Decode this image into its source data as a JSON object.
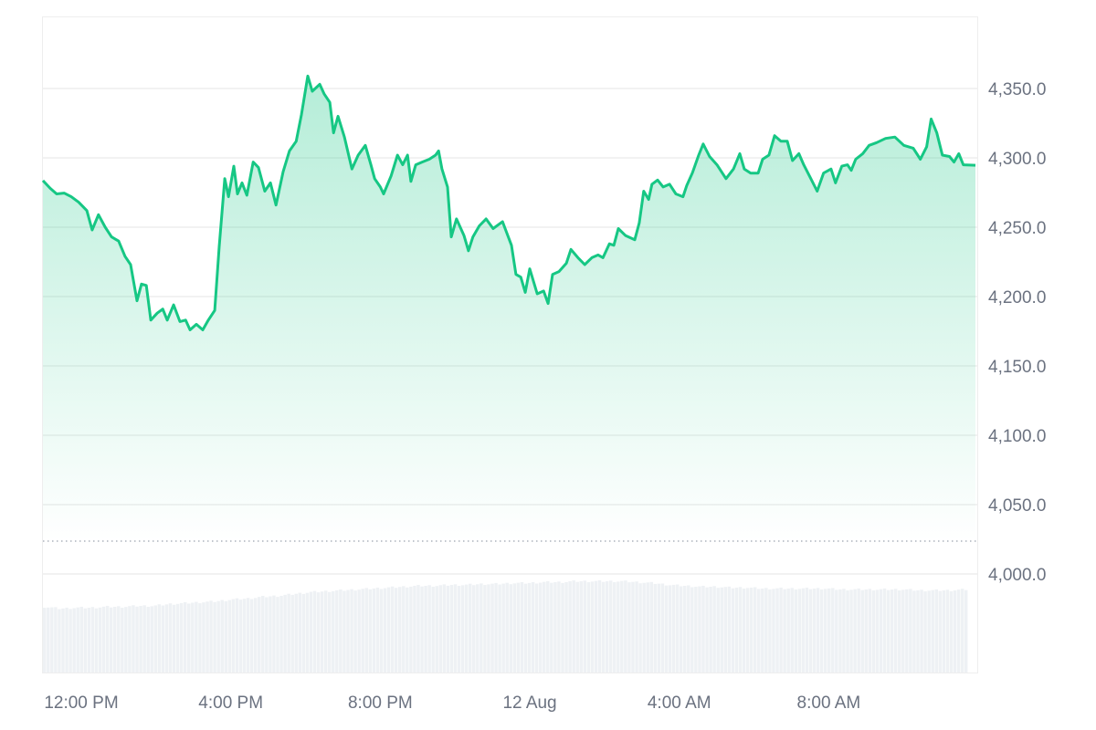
{
  "chart_data": {
    "type": "area",
    "title": "",
    "xlabel": "",
    "ylabel": "",
    "ylim": [
      3929,
      4402
    ],
    "grid": true,
    "legend": "none",
    "colors": {
      "line": "#16c784",
      "fill": "#16c784",
      "volume": "#eef1f4",
      "grid": "#eeeeee",
      "text": "#6b7280",
      "reference": "#9ca3af"
    },
    "x_range_hours": [
      -0.05,
      23.9
    ],
    "x_ticks": [
      {
        "label": "12:00 PM",
        "hour": 0
      },
      {
        "label": "4:00 PM",
        "hour": 4
      },
      {
        "label": "8:00 PM",
        "hour": 8
      },
      {
        "label": "12 Aug",
        "hour": 12
      },
      {
        "label": "4:00 AM",
        "hour": 16
      },
      {
        "label": "8:00 AM",
        "hour": 20
      }
    ],
    "y_ticks": [
      {
        "label": "4,350.0",
        "value": 4350
      },
      {
        "label": "4,300.0",
        "value": 4300
      },
      {
        "label": "4,250.0",
        "value": 4250
      },
      {
        "label": "4,200.0",
        "value": 4200
      },
      {
        "label": "4,150.0",
        "value": 4150
      },
      {
        "label": "4,100.0",
        "value": 4100
      },
      {
        "label": "4,050.0",
        "value": 4050
      },
      {
        "label": "4,000.0",
        "value": 4000
      }
    ],
    "reference_line": 4023.7,
    "series": [
      {
        "points": [
          [
            -1.03,
            4283.6
          ],
          [
            -0.83,
            4278
          ],
          [
            -0.66,
            4274
          ],
          [
            -0.46,
            4274.6
          ],
          [
            -0.27,
            4272
          ],
          [
            -0.07,
            4268
          ],
          [
            0.15,
            4262
          ],
          [
            0.29,
            4248
          ],
          [
            0.46,
            4259
          ],
          [
            0.64,
            4250
          ],
          [
            0.81,
            4243
          ],
          [
            1.0,
            4240
          ],
          [
            1.17,
            4229
          ],
          [
            1.32,
            4223
          ],
          [
            1.49,
            4197
          ],
          [
            1.61,
            4209
          ],
          [
            1.74,
            4208
          ],
          [
            1.86,
            4183
          ],
          [
            2.03,
            4188
          ],
          [
            2.18,
            4191
          ],
          [
            2.3,
            4183
          ],
          [
            2.47,
            4194
          ],
          [
            2.64,
            4182
          ],
          [
            2.79,
            4183
          ],
          [
            2.91,
            4176
          ],
          [
            3.08,
            4180
          ],
          [
            3.25,
            4176
          ],
          [
            3.4,
            4183
          ],
          [
            3.57,
            4190
          ],
          [
            3.69,
            4236
          ],
          [
            3.84,
            4285
          ],
          [
            3.94,
            4272
          ],
          [
            4.08,
            4294
          ],
          [
            4.18,
            4274
          ],
          [
            4.3,
            4282
          ],
          [
            4.43,
            4273
          ],
          [
            4.6,
            4297
          ],
          [
            4.74,
            4293
          ],
          [
            4.91,
            4276
          ],
          [
            5.06,
            4282
          ],
          [
            5.21,
            4266
          ],
          [
            5.4,
            4290
          ],
          [
            5.57,
            4305
          ],
          [
            5.75,
            4312
          ],
          [
            5.89,
            4331
          ],
          [
            6.06,
            4359
          ],
          [
            6.18,
            4348
          ],
          [
            6.38,
            4353
          ],
          [
            6.5,
            4346
          ],
          [
            6.65,
            4340
          ],
          [
            6.75,
            4318
          ],
          [
            6.87,
            4330
          ],
          [
            7.04,
            4315
          ],
          [
            7.24,
            4292
          ],
          [
            7.41,
            4302
          ],
          [
            7.6,
            4309
          ],
          [
            7.75,
            4295
          ],
          [
            7.85,
            4285
          ],
          [
            8.0,
            4279
          ],
          [
            8.09,
            4274
          ],
          [
            8.29,
            4287
          ],
          [
            8.46,
            4302
          ],
          [
            8.6,
            4295
          ],
          [
            8.73,
            4302
          ],
          [
            8.82,
            4283
          ],
          [
            8.95,
            4295
          ],
          [
            9.12,
            4297
          ],
          [
            9.31,
            4299
          ],
          [
            9.48,
            4302
          ],
          [
            9.56,
            4305
          ],
          [
            9.65,
            4292
          ],
          [
            9.8,
            4279
          ],
          [
            9.9,
            4243
          ],
          [
            10.04,
            4256
          ],
          [
            10.24,
            4244
          ],
          [
            10.36,
            4233
          ],
          [
            10.48,
            4243
          ],
          [
            10.65,
            4251
          ],
          [
            10.83,
            4256
          ],
          [
            11.02,
            4249
          ],
          [
            11.27,
            4254
          ],
          [
            11.51,
            4237
          ],
          [
            11.63,
            4216
          ],
          [
            11.76,
            4214
          ],
          [
            11.88,
            4203
          ],
          [
            12.0,
            4220
          ],
          [
            12.2,
            4202
          ],
          [
            12.37,
            4204
          ],
          [
            12.49,
            4195
          ],
          [
            12.61,
            4216
          ],
          [
            12.78,
            4218
          ],
          [
            12.98,
            4224
          ],
          [
            13.1,
            4234
          ],
          [
            13.29,
            4228
          ],
          [
            13.47,
            4223
          ],
          [
            13.66,
            4228
          ],
          [
            13.83,
            4230
          ],
          [
            13.96,
            4228
          ],
          [
            14.13,
            4238
          ],
          [
            14.25,
            4237
          ],
          [
            14.37,
            4249
          ],
          [
            14.56,
            4244
          ],
          [
            14.81,
            4241
          ],
          [
            14.93,
            4253
          ],
          [
            15.05,
            4276
          ],
          [
            15.18,
            4270
          ],
          [
            15.27,
            4281
          ],
          [
            15.42,
            4284
          ],
          [
            15.57,
            4279
          ],
          [
            15.74,
            4281
          ],
          [
            15.91,
            4274
          ],
          [
            16.1,
            4272
          ],
          [
            16.2,
            4280
          ],
          [
            16.35,
            4289
          ],
          [
            16.52,
            4302
          ],
          [
            16.64,
            4310
          ],
          [
            16.81,
            4301
          ],
          [
            17.01,
            4295
          ],
          [
            17.25,
            4285
          ],
          [
            17.45,
            4292
          ],
          [
            17.62,
            4303
          ],
          [
            17.74,
            4292
          ],
          [
            17.91,
            4289
          ],
          [
            18.11,
            4289
          ],
          [
            18.23,
            4299
          ],
          [
            18.4,
            4302
          ],
          [
            18.55,
            4316
          ],
          [
            18.72,
            4312
          ],
          [
            18.89,
            4312
          ],
          [
            19.03,
            4298
          ],
          [
            19.2,
            4303
          ],
          [
            19.33,
            4295
          ],
          [
            19.52,
            4285
          ],
          [
            19.69,
            4276
          ],
          [
            19.86,
            4289
          ],
          [
            20.06,
            4292
          ],
          [
            20.18,
            4282
          ],
          [
            20.35,
            4294
          ],
          [
            20.5,
            4295
          ],
          [
            20.6,
            4291
          ],
          [
            20.72,
            4299
          ],
          [
            20.91,
            4303
          ],
          [
            21.08,
            4309
          ],
          [
            21.28,
            4311
          ],
          [
            21.52,
            4314
          ],
          [
            21.77,
            4315
          ],
          [
            22.01,
            4309
          ],
          [
            22.26,
            4307
          ],
          [
            22.45,
            4299
          ],
          [
            22.62,
            4308
          ],
          [
            22.74,
            4328
          ],
          [
            22.89,
            4318
          ],
          [
            23.04,
            4302
          ],
          [
            23.23,
            4301
          ],
          [
            23.35,
            4297
          ],
          [
            23.48,
            4303
          ],
          [
            23.6,
            4295
          ],
          [
            23.92,
            4294.7
          ]
        ]
      }
    ],
    "volume_relative": [
      72,
      70,
      71,
      71,
      72,
      72,
      73,
      73,
      75,
      76,
      77,
      78,
      80,
      81,
      83,
      84,
      86,
      88,
      89,
      90,
      91,
      92,
      93,
      94,
      95,
      95,
      96,
      96,
      97,
      97,
      98,
      98,
      99,
      99,
      100,
      100,
      100,
      100,
      99,
      98,
      96,
      95,
      94,
      94,
      93,
      93,
      92,
      92,
      92,
      92,
      92,
      91,
      91,
      91,
      91,
      91,
      90,
      90,
      90,
      91
    ]
  }
}
